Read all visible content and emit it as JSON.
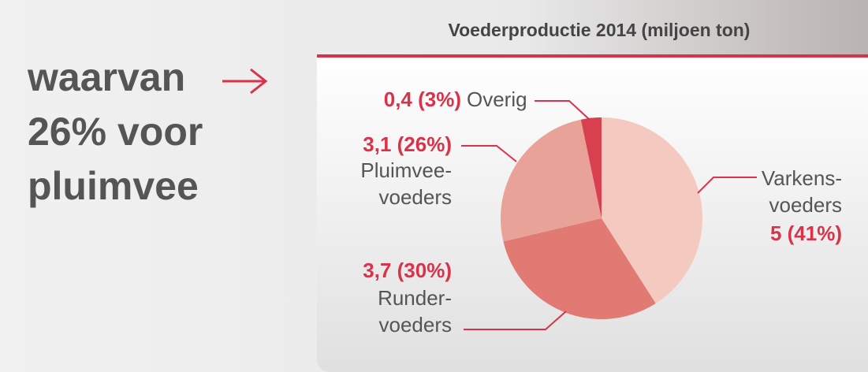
{
  "chart_data": {
    "type": "pie",
    "title": "Voederproductie 2014 (miljoen ton)",
    "annotation": "waarvan\n26% voor\npluimvee",
    "categories": [
      "Varkens-\nvoeders",
      "Runder-\nvoeders",
      "Pluimvee-\nvoeders",
      "Overig"
    ],
    "values": [
      5,
      3.7,
      3.1,
      0.4
    ],
    "value_labels": [
      "5 (41%)",
      "3,7 (30%)",
      "3,1 (26%)",
      "0,4 (3%)"
    ],
    "colors": [
      "#f4c9c0",
      "#e07a72",
      "#e9a298",
      "#d9404f"
    ]
  }
}
